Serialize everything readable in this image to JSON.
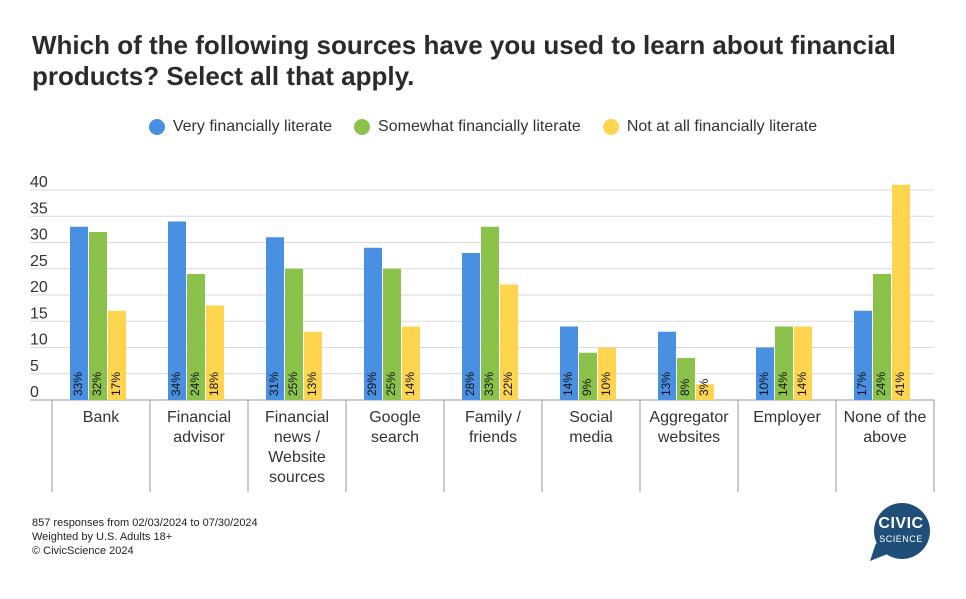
{
  "title": "Which of the following sources have you used to learn about financial products? Select all that apply.",
  "legend": [
    {
      "name": "Very financially literate",
      "color": "#4a90e2"
    },
    {
      "name": "Somewhat financially literate",
      "color": "#8bc34a"
    },
    {
      "name": "Not at all financially literate",
      "color": "#ffd54f"
    }
  ],
  "footer": {
    "line1": "857 responses from 02/03/2024 to 07/30/2024",
    "line2": "Weighted by U.S. Adults 18+",
    "line3": "© CivicScience 2024"
  },
  "logo": {
    "line1": "CIVIC",
    "line2": "SCIENCE",
    "color": "#1f4e79"
  },
  "chart_data": {
    "type": "bar",
    "title": "Which of the following sources have you used to learn about financial products? Select all that apply.",
    "categories": [
      [
        "Bank"
      ],
      [
        "Financial",
        "advisor"
      ],
      [
        "Financial",
        "news /",
        "Website",
        "sources"
      ],
      [
        "Google",
        "search"
      ],
      [
        "Family /",
        "friends"
      ],
      [
        "Social",
        "media"
      ],
      [
        "Aggregator",
        "websites"
      ],
      [
        "Employer"
      ],
      [
        "None of the",
        "above"
      ]
    ],
    "series": [
      {
        "name": "Very financially literate",
        "color": "#4a90e2",
        "values": [
          33,
          34,
          31,
          29,
          28,
          14,
          13,
          10,
          17
        ]
      },
      {
        "name": "Somewhat financially literate",
        "color": "#8bc34a",
        "values": [
          32,
          24,
          25,
          25,
          33,
          9,
          8,
          14,
          24
        ]
      },
      {
        "name": "Not at all financially literate",
        "color": "#ffd54f",
        "values": [
          17,
          18,
          13,
          14,
          22,
          10,
          3,
          14,
          41
        ]
      }
    ],
    "value_suffix": "%",
    "yticks": [
      0,
      5,
      10,
      15,
      20,
      25,
      30,
      35,
      40
    ],
    "ylim": [
      0,
      41
    ],
    "grid": true,
    "legend_position": "top-center"
  }
}
